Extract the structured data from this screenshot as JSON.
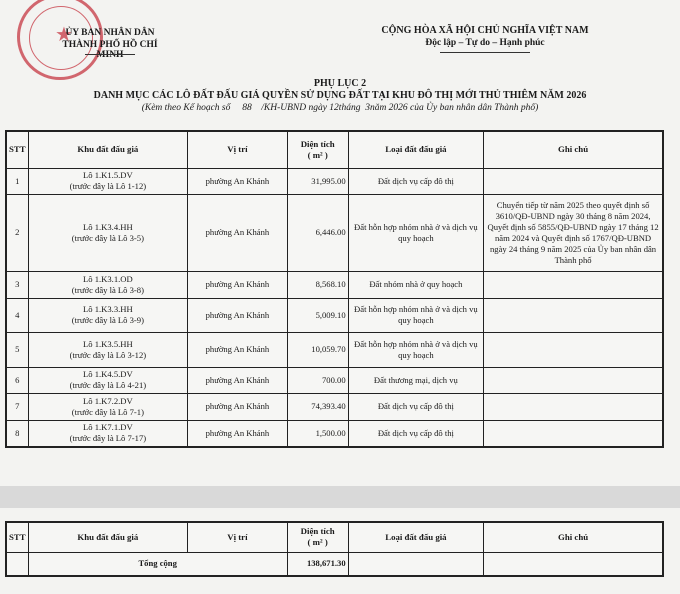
{
  "header": {
    "org_line1": "ỦY BAN NHÂN DÂN",
    "org_line2": "THÀNH PHỐ HỒ CHÍ MINH",
    "nation_line1": "CỘNG HÒA XÃ HỘI CHỦ NGHĨA VIỆT NAM",
    "nation_line2": "Độc lập – Tự do – Hạnh phúc",
    "seal_text": "ỦY BAN NHÂN DÂN THÀNH PHỐ HỒ CHÍ MINH",
    "seal_color": "#c9444e"
  },
  "title": {
    "line1": "PHỤ LỤC 2",
    "line2": "DANH MỤC CÁC LÔ ĐẤT ĐẤU GIÁ QUYỀN SỬ DỤNG ĐẤT TẠI KHU ĐÔ THỊ MỚI THỦ THIÊM NĂM 2026",
    "line3": "(Kèm theo Kế hoạch số     88    /KH-UBND ngày 12tháng  3năm 2026 của Ủy ban nhân dân Thành phố)"
  },
  "columns": [
    "STT",
    "Khu đất đấu giá",
    "Vị trí",
    "Diện tích",
    "( m² )",
    "Loại đất đấu giá",
    "Ghi chú"
  ],
  "rows": [
    {
      "stt": "1",
      "lot": "Lô 1.K1.5.DV",
      "prev": "(trước đây là Lô 1-12)",
      "location": "phường An Khánh",
      "area": "31,995.00",
      "type": "Đất dịch vụ cấp đô thị"
    },
    {
      "stt": "2",
      "lot": "Lô 1.K3.4.HH",
      "prev": "(trước đây là Lô 3-5)",
      "location": "phường An Khánh",
      "area": "6,446.00",
      "type": "Đất hỗn hợp nhóm nhà ở và dịch vụ quy hoạch",
      "note": "Chuyển tiếp từ năm 2025 theo quyết định số 3610/QĐ-UBND ngày 30 tháng 8 năm 2024, Quyết định số 5855/QĐ-UBND ngày 17 tháng 12 năm 2024 và Quyết định số 1767/QĐ-UBND ngày 24 tháng 9 năm 2025 của Ủy ban nhân dân Thành phố"
    },
    {
      "stt": "3",
      "lot": "Lô 1.K3.1.OD",
      "prev": "(trước đây là Lô 3-8)",
      "location": "phường An Khánh",
      "area": "8,568.10",
      "type": "Đất nhóm nhà ở quy hoạch"
    },
    {
      "stt": "4",
      "lot": "Lô 1.K3.3.HH",
      "prev": "(trước đây là Lô 3-9)",
      "location": "phường An Khánh",
      "area": "5,009.10",
      "type": "Đất hỗn hợp nhóm nhà ở và dịch vụ quy hoạch"
    },
    {
      "stt": "5",
      "lot": "Lô 1.K3.5.HH",
      "prev": "(trước đây là Lô 3-12)",
      "location": "phường An Khánh",
      "area": "10,059.70",
      "type": "Đất hỗn hợp nhóm nhà ở và dịch vụ quy hoạch"
    },
    {
      "stt": "6",
      "lot": "Lô 1.K4.5.DV",
      "prev": "(trước đây là Lô 4-21)",
      "location": "phường An Khánh",
      "area": "700.00",
      "type": "Đất thương mại, dịch vụ"
    },
    {
      "stt": "7",
      "lot": "Lô 1.K7.2.DV",
      "prev": "(trước đây là Lô 7-1)",
      "location": "phường An Khánh",
      "area": "74,393.40",
      "type": "Đất dịch vụ cấp đô thị"
    },
    {
      "stt": "8",
      "lot": "Lô 1.K7.1.DV",
      "prev": "(trước đây là Lô 7-17)",
      "location": "phường An Khánh",
      "area": "1,500.00",
      "type": "Đất dịch vụ cấp đô thị"
    }
  ],
  "total": {
    "label": "Tổng cộng",
    "area": "138,671.30"
  }
}
